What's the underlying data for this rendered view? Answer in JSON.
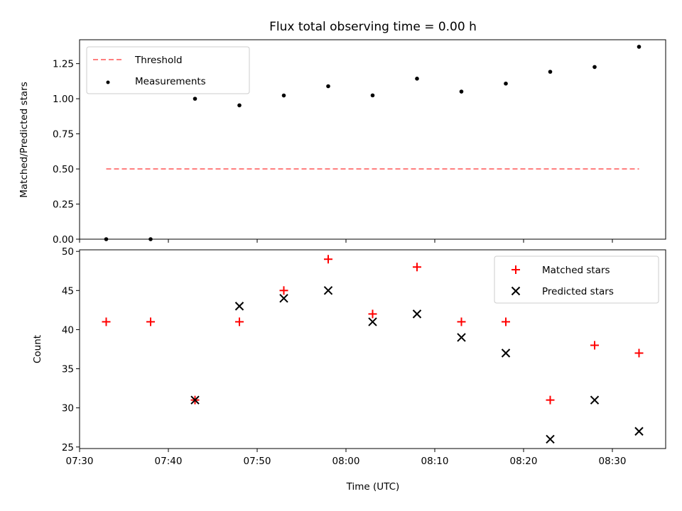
{
  "chart_data": [
    {
      "type": "scatter",
      "title": "Flux total observing time = 0.00 h",
      "xlabel": "",
      "ylabel": "Matched/Predicted stars",
      "ylim": [
        0,
        1.42
      ],
      "yticks": [
        0.0,
        0.25,
        0.5,
        0.75,
        1.0,
        1.25
      ],
      "ytick_labels": [
        "0.00",
        "0.25",
        "0.50",
        "0.75",
        "1.00",
        "1.25"
      ],
      "legend_position": "top-left",
      "threshold": {
        "name": "Threshold",
        "value": 0.5,
        "x_start": "07:33",
        "x_end": "08:33",
        "color": "#ff7f7f",
        "style": "dashed"
      },
      "series": [
        {
          "name": "Measurements",
          "color": "#000000",
          "marker": "dot",
          "x": [
            "07:33",
            "07:38",
            "07:43",
            "07:48",
            "07:53",
            "07:58",
            "08:03",
            "08:08",
            "08:13",
            "08:18",
            "08:23",
            "08:28",
            "08:33"
          ],
          "y": [
            0.0,
            0.0,
            1.0,
            0.953,
            1.023,
            1.089,
            1.024,
            1.143,
            1.051,
            1.108,
            1.192,
            1.226,
            1.37
          ]
        }
      ]
    },
    {
      "type": "scatter",
      "title": "",
      "xlabel": "Time (UTC)",
      "ylabel": "Count",
      "ylim": [
        24.8,
        50.2
      ],
      "xlim": [
        "07:30",
        "08:36"
      ],
      "yticks": [
        25,
        30,
        35,
        40,
        45,
        50
      ],
      "ytick_labels": [
        "25",
        "30",
        "35",
        "40",
        "45",
        "50"
      ],
      "xticks": [
        "07:30",
        "07:40",
        "07:50",
        "08:00",
        "08:10",
        "08:20",
        "08:30"
      ],
      "legend_position": "top-right",
      "series": [
        {
          "name": "Matched stars",
          "color": "#ff0000",
          "marker": "plus",
          "x": [
            "07:33",
            "07:38",
            "07:43",
            "07:48",
            "07:53",
            "07:58",
            "08:03",
            "08:08",
            "08:13",
            "08:18",
            "08:23",
            "08:28",
            "08:33"
          ],
          "y": [
            41,
            41,
            31,
            41,
            45,
            49,
            42,
            48,
            41,
            41,
            31,
            38,
            37
          ]
        },
        {
          "name": "Predicted stars",
          "color": "#000000",
          "marker": "x",
          "x": [
            "07:43",
            "07:48",
            "07:53",
            "07:58",
            "08:03",
            "08:08",
            "08:13",
            "08:18",
            "08:23",
            "08:28",
            "08:33"
          ],
          "y": [
            31,
            43,
            44,
            45,
            41,
            42,
            39,
            37,
            26,
            31,
            27
          ]
        }
      ]
    }
  ]
}
